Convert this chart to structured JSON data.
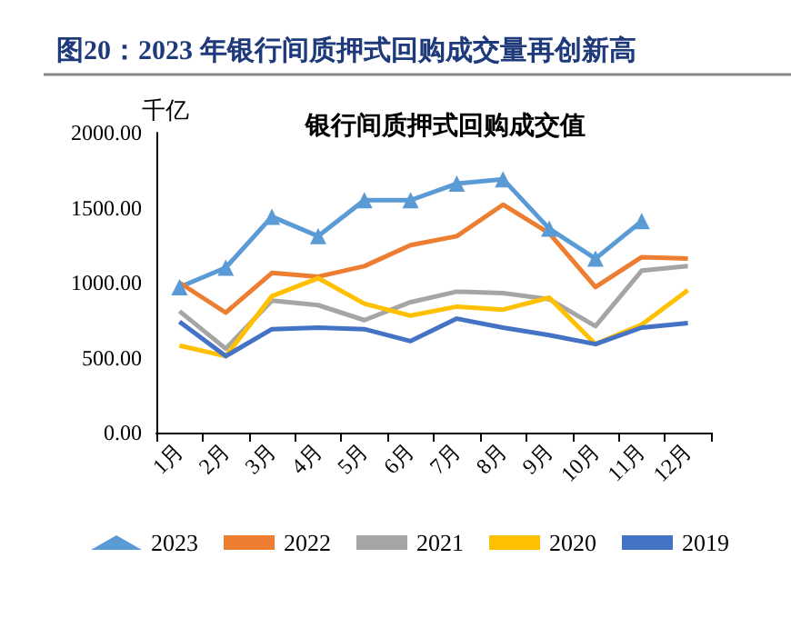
{
  "chart_data": {
    "type": "line",
    "title": "图20：2023 年银行间质押式回购成交量再创新高",
    "subtitle": "银行间质押式回购成交值",
    "ylabel": "千亿",
    "categories": [
      "1月",
      "2月",
      "3月",
      "4月",
      "5月",
      "6月",
      "7月",
      "8月",
      "9月",
      "10月",
      "11月",
      "12月"
    ],
    "series": [
      {
        "name": "2023",
        "color": "#5b9bd5",
        "marker": "triangle",
        "values": [
          970,
          1100,
          1440,
          1310,
          1550,
          1550,
          1660,
          1690,
          1360,
          1160,
          1410,
          null
        ]
      },
      {
        "name": "2022",
        "color": "#ed7d31",
        "values": [
          1000,
          800,
          1065,
          1040,
          1110,
          1250,
          1310,
          1520,
          1330,
          970,
          1170,
          1160
        ]
      },
      {
        "name": "2021",
        "color": "#a5a5a5",
        "values": [
          810,
          560,
          880,
          850,
          750,
          870,
          940,
          930,
          890,
          710,
          1080,
          1110
        ]
      },
      {
        "name": "2020",
        "color": "#ffc000",
        "values": [
          580,
          510,
          910,
          1030,
          860,
          780,
          840,
          820,
          900,
          590,
          720,
          950
        ]
      },
      {
        "name": "2019",
        "color": "#4472c4",
        "values": [
          740,
          510,
          690,
          700,
          690,
          610,
          760,
          700,
          650,
          590,
          700,
          730
        ]
      }
    ],
    "ylim": [
      0,
      2000
    ],
    "yticks": [
      {
        "value": 0,
        "label": "0.00"
      },
      {
        "value": 500,
        "label": "500.00"
      },
      {
        "value": 1000,
        "label": "1000.00"
      },
      {
        "value": 1500,
        "label": "1500.00"
      },
      {
        "value": 2000,
        "label": "2000.00"
      }
    ],
    "grid": false,
    "legend": "bottom"
  }
}
